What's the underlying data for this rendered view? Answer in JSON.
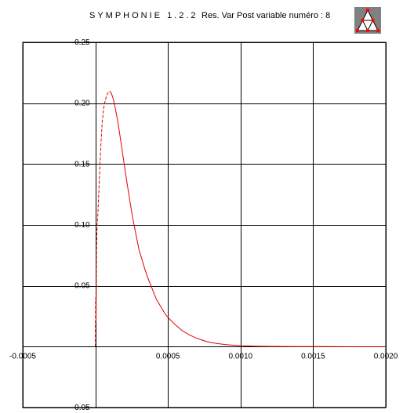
{
  "header": {
    "app_title": "SYMPHONIE 1.2.2",
    "caption": "Res. Var Post variable numéro :  8",
    "logo_icon": "symphonie-triangle-logo-icon"
  },
  "colors": {
    "curve": "#e00000",
    "grid": "#000000",
    "logo_bg": "#808080",
    "logo_dots": "#ff0000"
  },
  "chart_data": {
    "type": "line",
    "title": "",
    "xlabel": "",
    "ylabel": "",
    "xlim": [
      -0.0005,
      0.002
    ],
    "ylim": [
      -0.05,
      0.25
    ],
    "grid": true,
    "x_ticks": [
      -0.0005,
      0.0005,
      0.001,
      0.0015,
      0.002
    ],
    "x_tick_labels": [
      "-0.0005",
      "0.0005",
      "0.0010",
      "0.0015",
      "0.0020"
    ],
    "y_ticks": [
      0.25,
      0.2,
      0.15,
      0.1,
      0.05,
      -0.05
    ],
    "y_tick_labels": [
      "0.25",
      "0.20",
      "0.15",
      "0.10",
      "0.05",
      "-0.05"
    ],
    "series": [
      {
        "line_style": "dashed",
        "x": [
          0,
          2e-06,
          5e-06,
          8e-06,
          1.2e-05,
          1.8e-05,
          2.5e-05,
          3.2e-05,
          4e-05,
          4.8e-05,
          5.6e-05,
          6.4e-05,
          7.2e-05,
          8e-05,
          9e-05,
          0.0001
        ],
        "y": [
          0.0,
          0.04,
          0.02,
          0.08,
          0.1,
          0.11,
          0.13,
          0.15,
          0.17,
          0.185,
          0.195,
          0.2,
          0.204,
          0.207,
          0.209,
          0.21
        ]
      },
      {
        "line_style": "solid",
        "x": [
          0.0001,
          0.00011,
          0.00012,
          0.00013,
          0.00014,
          0.00015,
          0.00016,
          0.00017,
          0.00018,
          0.00019,
          0.0002,
          0.00021,
          0.00022,
          0.00023,
          0.00024,
          0.00025,
          0.00026,
          0.00027,
          0.00028,
          0.00029,
          0.0003,
          0.00032,
          0.00034,
          0.00036,
          0.00038,
          0.0004,
          0.00042,
          0.00044,
          0.00046,
          0.00048,
          0.0005,
          0.00055,
          0.0006,
          0.00065,
          0.0007,
          0.00075,
          0.0008,
          0.00085,
          0.0009,
          0.00095,
          0.001,
          0.00105,
          0.0011,
          0.0012,
          0.0013,
          0.0014,
          0.0015,
          0.0016,
          0.0017,
          0.0018,
          0.0019,
          0.002
        ],
        "y": [
          0.21,
          0.208,
          0.205,
          0.2,
          0.194,
          0.188,
          0.181,
          0.173,
          0.165,
          0.157,
          0.149,
          0.141,
          0.133,
          0.126,
          0.118,
          0.111,
          0.104,
          0.098,
          0.092,
          0.086,
          0.08,
          0.072,
          0.064,
          0.057,
          0.051,
          0.045,
          0.039,
          0.035,
          0.031,
          0.027,
          0.024,
          0.018,
          0.013,
          0.0095,
          0.0068,
          0.0048,
          0.0033,
          0.0024,
          0.0017,
          0.0012,
          0.0008,
          0.0006,
          0.0004,
          0.0002,
          0.0001,
          5e-05,
          3e-05,
          2e-05,
          1e-05,
          0.0,
          0.0,
          0.0
        ]
      }
    ]
  }
}
